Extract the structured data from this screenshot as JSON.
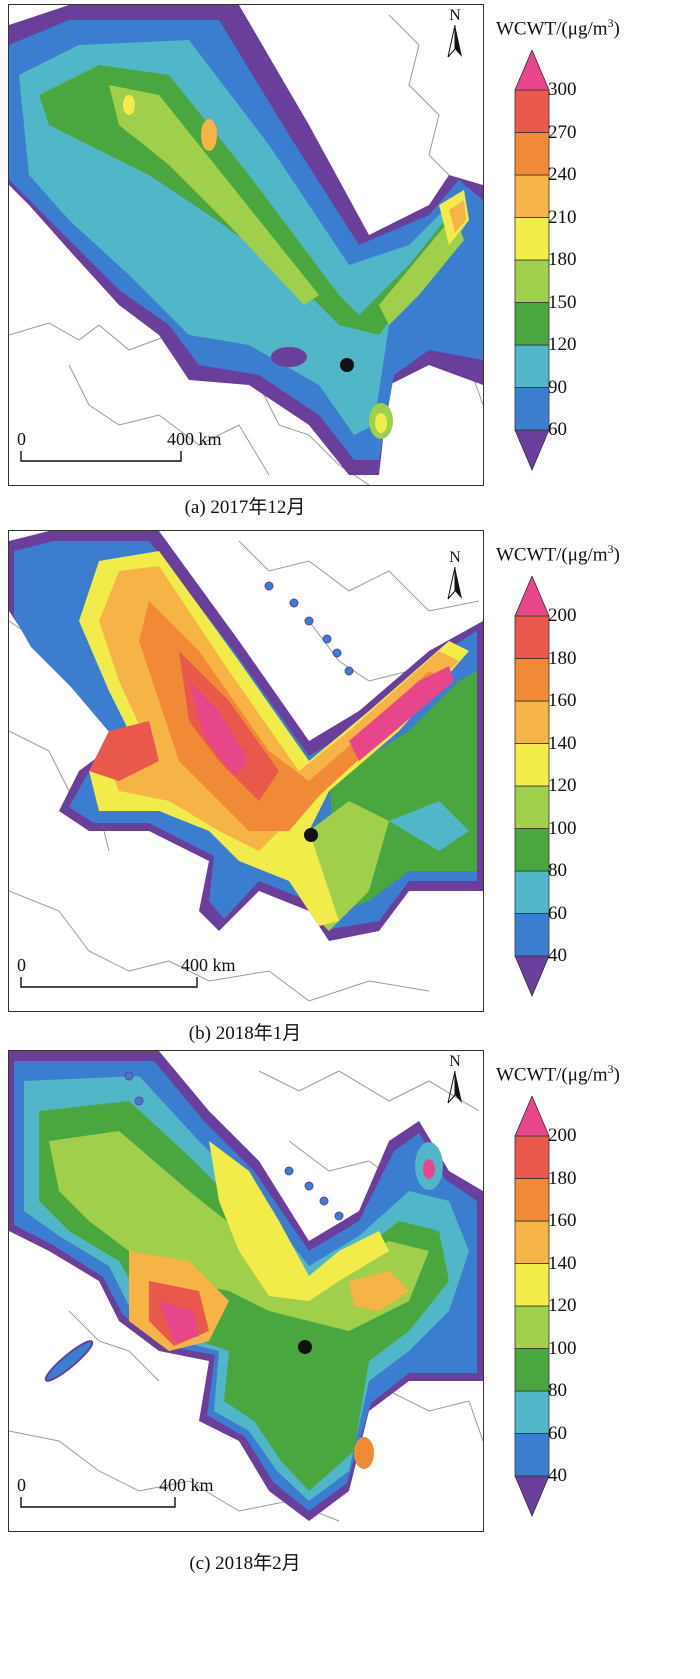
{
  "panels": [
    {
      "caption": "(a) 2017年12月",
      "legend_title": "WCWT/(μg/m",
      "legend_sup": "3",
      "legend_close": ")",
      "ticks": [
        "300",
        "270",
        "240",
        "210",
        "180",
        "150",
        "120",
        "90",
        "60"
      ],
      "colors": [
        "#6a3f9c",
        "#3b7ed0",
        "#52b6c9",
        "#4aa73f",
        "#9fcf4b",
        "#f2ec4a",
        "#f6b447",
        "#f18a36",
        "#e8584b",
        "#e8468a"
      ],
      "scale_zero": "0",
      "scale_dist": "400 km",
      "north": "N"
    },
    {
      "caption": "(b) 2018年1月",
      "legend_title": "WCWT/(μg/m",
      "legend_sup": "3",
      "legend_close": ")",
      "ticks": [
        "200",
        "180",
        "160",
        "140",
        "120",
        "100",
        "80",
        "60",
        "40"
      ],
      "colors": [
        "#6a3f9c",
        "#3b7ed0",
        "#52b6c9",
        "#4aa73f",
        "#9fcf4b",
        "#f2ec4a",
        "#f6b447",
        "#f18a36",
        "#e8584b",
        "#e8468a"
      ],
      "scale_zero": "0",
      "scale_dist": "400 km",
      "north": "N"
    },
    {
      "caption": "(c) 2018年2月",
      "legend_title": "WCWT/(μg/m",
      "legend_sup": "3",
      "legend_close": ")",
      "ticks": [
        "200",
        "180",
        "160",
        "140",
        "120",
        "100",
        "80",
        "60",
        "40"
      ],
      "colors": [
        "#6a3f9c",
        "#3b7ed0",
        "#52b6c9",
        "#4aa73f",
        "#9fcf4b",
        "#f2ec4a",
        "#f6b447",
        "#f18a36",
        "#e8584b",
        "#e8468a"
      ],
      "scale_zero": "0",
      "scale_dist": "400 km",
      "north": "N"
    }
  ]
}
